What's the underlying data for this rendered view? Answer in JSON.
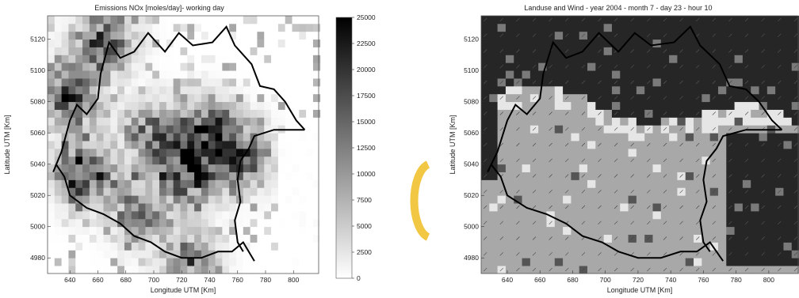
{
  "chart_data": [
    {
      "type": "heatmap",
      "title": "Emissions NOx [moles/day]- working day",
      "xlabel": "Longitude UTM [Km]",
      "ylabel": "Latitude UTM [Km]",
      "xlim": [
        624,
        818
      ],
      "ylim": [
        4970,
        5135
      ],
      "x_ticks": [
        640,
        660,
        680,
        700,
        720,
        740,
        760,
        780,
        800
      ],
      "y_ticks": [
        4980,
        5000,
        5020,
        5040,
        5060,
        5080,
        5100,
        5120
      ],
      "colorbar": {
        "min": 0,
        "max": 25000,
        "ticks": [
          0,
          2500,
          5000,
          7500,
          10000,
          12500,
          15000,
          17500,
          20000,
          22500,
          25000
        ],
        "colormap": "gray-reversed"
      },
      "grid": false,
      "hotspots": [
        {
          "x": 650,
          "y": 5035,
          "value": 23000
        },
        {
          "x": 725,
          "y": 5035,
          "value": 23000
        },
        {
          "x": 740,
          "y": 5060,
          "value": 19000
        },
        {
          "x": 762,
          "y": 5045,
          "value": 21000
        },
        {
          "x": 665,
          "y": 5120,
          "value": 20000
        },
        {
          "x": 640,
          "y": 5085,
          "value": 21000
        },
        {
          "x": 700,
          "y": 5060,
          "value": 17000
        },
        {
          "x": 690,
          "y": 5010,
          "value": 15000
        },
        {
          "x": 725,
          "y": 4978,
          "value": 14000
        }
      ]
    },
    {
      "type": "heatmap",
      "title": "Landuse and Wind - year 2004 - month 7 - day 23 - hour 10",
      "xlabel": "Longitude UTM [Km]",
      "ylabel": "Latitude UTM [Km]",
      "xlim": [
        624,
        818
      ],
      "ylim": [
        4970,
        5135
      ],
      "x_ticks": [
        640,
        660,
        680,
        700,
        720,
        740,
        760,
        780,
        800
      ],
      "y_ticks": [
        4980,
        5000,
        5020,
        5040,
        5060,
        5080,
        5100,
        5120
      ],
      "grid": false,
      "overlay": "wind vectors"
    }
  ],
  "colors": {
    "border": "#000000",
    "landuse_dark": "#262626",
    "landuse_mid": "#a8a8a8",
    "landuse_light": "#e6e6e6",
    "decoration": "#f2c744"
  }
}
